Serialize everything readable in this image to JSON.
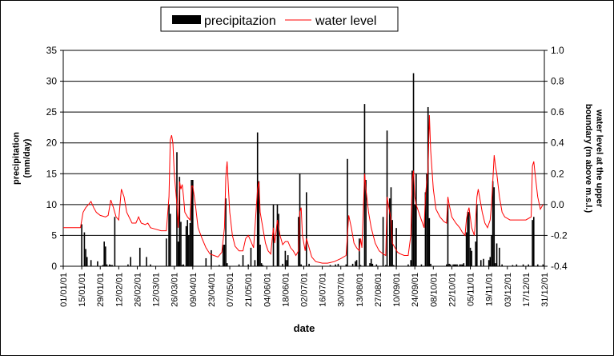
{
  "chart_data": {
    "type": "bar+line",
    "x_dates": [
      "01/01/01",
      "15/01/01",
      "29/01/01",
      "12/02/01",
      "26/02/01",
      "12/03/01",
      "26/03/01",
      "09/04/01",
      "23/04/01",
      "07/05/01",
      "21/05/01",
      "04/06/01",
      "18/06/01",
      "02/07/01",
      "16/07/01",
      "30/07/01",
      "13/08/01",
      "27/08/01",
      "10/09/01",
      "24/09/01",
      "08/10/01",
      "22/10/01",
      "05/11/01",
      "19/11/01",
      "03/12/01",
      "17/12/01",
      "31/12/01"
    ],
    "xlabel": "date",
    "ylabel_left": "precipitation (mm/day)",
    "ylabel_right": "water level at the upper boundary (m above m.s.l.)",
    "y_left_lim": [
      0,
      35
    ],
    "y_left_ticks": [
      "0",
      "5",
      "10",
      "15",
      "20",
      "25",
      "30",
      "35"
    ],
    "y_right_lim": [
      -0.4,
      1.0
    ],
    "y_right_ticks": [
      "-0.4",
      "-0.2",
      "0.0",
      "0.2",
      "0.4",
      "0.6",
      "0.8",
      "1.0"
    ],
    "grid": true,
    "legend_position": "top-center",
    "series": [
      {
        "name": "precipitazion",
        "type": "bar",
        "axis": "left",
        "color": "#000000",
        "points": [
          [
            14,
            6.8
          ],
          [
            16,
            5.5
          ],
          [
            17,
            2.8
          ],
          [
            18,
            1.5
          ],
          [
            21,
            1.0
          ],
          [
            26,
            0.8
          ],
          [
            30,
            0.2
          ],
          [
            31,
            4.0
          ],
          [
            32,
            3.2
          ],
          [
            33,
            0.3
          ],
          [
            35,
            0.3
          ],
          [
            36,
            0.2
          ],
          [
            37,
            0.2
          ],
          [
            39,
            8.0
          ],
          [
            49,
            0.3
          ],
          [
            51,
            1.5
          ],
          [
            58,
            3.0
          ],
          [
            63,
            1.5
          ],
          [
            66,
            0.3
          ],
          [
            78,
            4.5
          ],
          [
            80,
            10.0
          ],
          [
            81,
            8.5
          ],
          [
            86,
            18.5
          ],
          [
            87,
            4.0
          ],
          [
            88,
            14.5
          ],
          [
            89,
            7.2
          ],
          [
            90,
            0.2
          ],
          [
            91,
            0.3
          ],
          [
            93,
            6.5
          ],
          [
            94,
            7.5
          ],
          [
            95,
            5.0
          ],
          [
            96,
            7.0
          ],
          [
            97,
            14.0
          ],
          [
            98,
            14.0
          ],
          [
            108,
            1.3
          ],
          [
            112,
            2.6
          ],
          [
            118,
            0.2
          ],
          [
            121,
            3.5
          ],
          [
            122,
            3.5
          ],
          [
            123,
            11.0
          ],
          [
            124,
            0.5
          ],
          [
            133,
            0.3
          ],
          [
            136,
            1.8
          ],
          [
            140,
            0.3
          ],
          [
            142,
            3.0
          ],
          [
            145,
            1.0
          ],
          [
            147,
            21.7
          ],
          [
            148,
            13.8
          ],
          [
            149,
            3.5
          ],
          [
            150,
            0.5
          ],
          [
            151,
            0.2
          ],
          [
            159,
            10.0
          ],
          [
            162,
            10.0
          ],
          [
            163,
            8.5
          ],
          [
            166,
            0.4
          ],
          [
            168,
            2.5
          ],
          [
            169,
            1.0
          ],
          [
            170,
            1.8
          ],
          [
            178,
            8.0
          ],
          [
            179,
            15.0
          ],
          [
            180,
            0.3
          ],
          [
            184,
            12.0
          ],
          [
            186,
            0.4
          ],
          [
            202,
            0.2
          ],
          [
            206,
            0.3
          ],
          [
            208,
            0.4
          ],
          [
            214,
            0.3
          ],
          [
            215,
            17.4
          ],
          [
            219,
            0.4
          ],
          [
            221,
            0.8
          ],
          [
            222,
            1.0
          ],
          [
            224,
            4.5
          ],
          [
            225,
            0.2
          ],
          [
            228,
            26.3
          ],
          [
            229,
            14.0
          ],
          [
            232,
            0.5
          ],
          [
            233,
            1.2
          ],
          [
            234,
            0.4
          ],
          [
            237,
            0.3
          ],
          [
            242,
            8.0
          ],
          [
            244,
            0.2
          ],
          [
            245,
            22.0
          ],
          [
            247,
            11.0
          ],
          [
            248,
            12.8
          ],
          [
            249,
            7.5
          ],
          [
            250,
            0.2
          ],
          [
            252,
            6.2
          ],
          [
            261,
            0.3
          ],
          [
            263,
            1.0
          ],
          [
            264,
            15.5
          ],
          [
            265,
            31.3
          ],
          [
            266,
            10.0
          ],
          [
            267,
            15.0
          ],
          [
            271,
            0.3
          ],
          [
            274,
            12.0
          ],
          [
            275,
            15.0
          ],
          [
            276,
            25.8
          ],
          [
            277,
            7.8
          ],
          [
            278,
            0.4
          ],
          [
            290,
            0.3
          ],
          [
            291,
            10.0
          ],
          [
            292,
            0.4
          ],
          [
            293,
            0.3
          ],
          [
            295,
            0.3
          ],
          [
            296,
            0.3
          ],
          [
            297,
            0.3
          ],
          [
            298,
            0.3
          ],
          [
            300,
            0.3
          ],
          [
            301,
            0.3
          ],
          [
            302,
            0.3
          ],
          [
            303,
            0.5
          ],
          [
            305,
            5.5
          ],
          [
            306,
            8.8
          ],
          [
            307,
            8.8
          ],
          [
            308,
            3.0
          ],
          [
            309,
            2.5
          ],
          [
            312,
            4.0
          ],
          [
            313,
            10.0
          ],
          [
            316,
            1.0
          ],
          [
            318,
            1.2
          ],
          [
            322,
            1.0
          ],
          [
            323,
            1.5
          ],
          [
            324,
            5.0
          ],
          [
            325,
            13.8
          ],
          [
            326,
            12.8
          ],
          [
            327,
            0.5
          ],
          [
            328,
            3.7
          ],
          [
            330,
            3.0
          ],
          [
            332,
            0.3
          ],
          [
            340,
            0.2
          ],
          [
            343,
            0.3
          ],
          [
            348,
            0.3
          ],
          [
            352,
            0.3
          ],
          [
            355,
            7.5
          ],
          [
            356,
            8.0
          ],
          [
            359,
            0.3
          ],
          [
            363,
            0.3
          ]
        ]
      },
      {
        "name": "water level",
        "type": "line",
        "axis": "right",
        "color": "#ff0000",
        "points": [
          [
            0,
            -0.15
          ],
          [
            10,
            -0.15
          ],
          [
            13,
            -0.15
          ],
          [
            15,
            -0.05
          ],
          [
            17,
            -0.02
          ],
          [
            19,
            0.0
          ],
          [
            21,
            0.02
          ],
          [
            23,
            -0.02
          ],
          [
            25,
            -0.05
          ],
          [
            28,
            -0.07
          ],
          [
            32,
            -0.08
          ],
          [
            34,
            -0.07
          ],
          [
            36,
            0.03
          ],
          [
            38,
            -0.02
          ],
          [
            40,
            -0.08
          ],
          [
            42,
            -0.1
          ],
          [
            44,
            0.1
          ],
          [
            46,
            0.05
          ],
          [
            48,
            -0.05
          ],
          [
            52,
            -0.12
          ],
          [
            55,
            -0.12
          ],
          [
            57,
            -0.08
          ],
          [
            59,
            -0.12
          ],
          [
            62,
            -0.13
          ],
          [
            64,
            -0.12
          ],
          [
            66,
            -0.15
          ],
          [
            70,
            -0.16
          ],
          [
            74,
            -0.17
          ],
          [
            78,
            -0.17
          ],
          [
            80,
            0.05
          ],
          [
            81,
            0.42
          ],
          [
            82,
            0.45
          ],
          [
            83,
            0.4
          ],
          [
            84,
            0.2
          ],
          [
            86,
            0.0
          ],
          [
            87,
            -0.15
          ],
          [
            88,
            0.15
          ],
          [
            89,
            0.1
          ],
          [
            90,
            0.13
          ],
          [
            91,
            0.05
          ],
          [
            92,
            -0.05
          ],
          [
            94,
            -0.08
          ],
          [
            96,
            -0.1
          ],
          [
            97,
            0.12
          ],
          [
            98,
            0.12
          ],
          [
            100,
            0.0
          ],
          [
            102,
            -0.15
          ],
          [
            105,
            -0.22
          ],
          [
            108,
            -0.28
          ],
          [
            111,
            -0.32
          ],
          [
            114,
            -0.33
          ],
          [
            117,
            -0.34
          ],
          [
            120,
            -0.31
          ],
          [
            122,
            -0.15
          ],
          [
            123,
            0.18
          ],
          [
            124,
            0.28
          ],
          [
            125,
            0.1
          ],
          [
            126,
            -0.05
          ],
          [
            128,
            -0.2
          ],
          [
            130,
            -0.27
          ],
          [
            133,
            -0.3
          ],
          [
            136,
            -0.3
          ],
          [
            138,
            -0.22
          ],
          [
            140,
            -0.2
          ],
          [
            142,
            -0.24
          ],
          [
            144,
            -0.28
          ],
          [
            147,
            0.1
          ],
          [
            148,
            0.15
          ],
          [
            149,
            -0.05
          ],
          [
            151,
            -0.15
          ],
          [
            153,
            -0.25
          ],
          [
            155,
            -0.3
          ],
          [
            157,
            -0.32
          ],
          [
            159,
            -0.15
          ],
          [
            160,
            -0.25
          ],
          [
            162,
            -0.1
          ],
          [
            164,
            -0.2
          ],
          [
            166,
            -0.26
          ],
          [
            168,
            -0.24
          ],
          [
            170,
            -0.24
          ],
          [
            172,
            -0.28
          ],
          [
            174,
            -0.3
          ],
          [
            176,
            -0.33
          ],
          [
            178,
            -0.3
          ],
          [
            179,
            -0.05
          ],
          [
            180,
            -0.02
          ],
          [
            181,
            -0.2
          ],
          [
            183,
            -0.3
          ],
          [
            184,
            -0.22
          ],
          [
            186,
            -0.28
          ],
          [
            188,
            -0.34
          ],
          [
            191,
            -0.37
          ],
          [
            196,
            -0.38
          ],
          [
            200,
            -0.38
          ],
          [
            205,
            -0.37
          ],
          [
            210,
            -0.35
          ],
          [
            214,
            -0.33
          ],
          [
            215,
            -0.2
          ],
          [
            216,
            -0.07
          ],
          [
            218,
            -0.15
          ],
          [
            220,
            -0.25
          ],
          [
            222,
            -0.28
          ],
          [
            224,
            -0.3
          ],
          [
            225,
            -0.22
          ],
          [
            226,
            -0.28
          ],
          [
            228,
            0.2
          ],
          [
            229,
            0.1
          ],
          [
            231,
            -0.05
          ],
          [
            233,
            -0.15
          ],
          [
            236,
            -0.25
          ],
          [
            239,
            -0.3
          ],
          [
            242,
            -0.32
          ],
          [
            244,
            -0.33
          ],
          [
            245,
            0.05
          ],
          [
            246,
            0.0
          ],
          [
            248,
            -0.1
          ],
          [
            249,
            -0.25
          ],
          [
            251,
            -0.28
          ],
          [
            253,
            -0.31
          ],
          [
            255,
            -0.32
          ],
          [
            258,
            -0.33
          ],
          [
            261,
            -0.33
          ],
          [
            263,
            -0.2
          ],
          [
            264,
            0.15
          ],
          [
            265,
            0.22
          ],
          [
            266,
            0.05
          ],
          [
            267,
            0.0
          ],
          [
            269,
            -0.05
          ],
          [
            271,
            -0.1
          ],
          [
            273,
            -0.15
          ],
          [
            274,
            0.05
          ],
          [
            275,
            0.15
          ],
          [
            276,
            0.22
          ],
          [
            277,
            0.58
          ],
          [
            278,
            0.35
          ],
          [
            280,
            0.1
          ],
          [
            282,
            -0.03
          ],
          [
            285,
            -0.08
          ],
          [
            288,
            -0.11
          ],
          [
            290,
            -0.12
          ],
          [
            291,
            0.05
          ],
          [
            292,
            0.0
          ],
          [
            294,
            -0.08
          ],
          [
            297,
            -0.12
          ],
          [
            300,
            -0.15
          ],
          [
            302,
            -0.18
          ],
          [
            304,
            -0.2
          ],
          [
            305,
            -0.1
          ],
          [
            306,
            -0.05
          ],
          [
            307,
            -0.02
          ],
          [
            309,
            -0.15
          ],
          [
            311,
            -0.2
          ],
          [
            312,
            -0.1
          ],
          [
            313,
            0.05
          ],
          [
            314,
            0.1
          ],
          [
            315,
            0.05
          ],
          [
            317,
            -0.05
          ],
          [
            319,
            -0.12
          ],
          [
            321,
            -0.15
          ],
          [
            323,
            -0.1
          ],
          [
            324,
            0.0
          ],
          [
            325,
            0.15
          ],
          [
            326,
            0.32
          ],
          [
            327,
            0.25
          ],
          [
            328,
            0.2
          ],
          [
            330,
            0.05
          ],
          [
            332,
            -0.05
          ],
          [
            334,
            -0.08
          ],
          [
            338,
            -0.1
          ],
          [
            342,
            -0.1
          ],
          [
            346,
            -0.1
          ],
          [
            350,
            -0.1
          ],
          [
            354,
            -0.08
          ],
          [
            355,
            0.25
          ],
          [
            356,
            0.28
          ],
          [
            357,
            0.2
          ],
          [
            359,
            0.05
          ],
          [
            361,
            -0.03
          ],
          [
            363,
            0.0
          ]
        ]
      }
    ]
  }
}
